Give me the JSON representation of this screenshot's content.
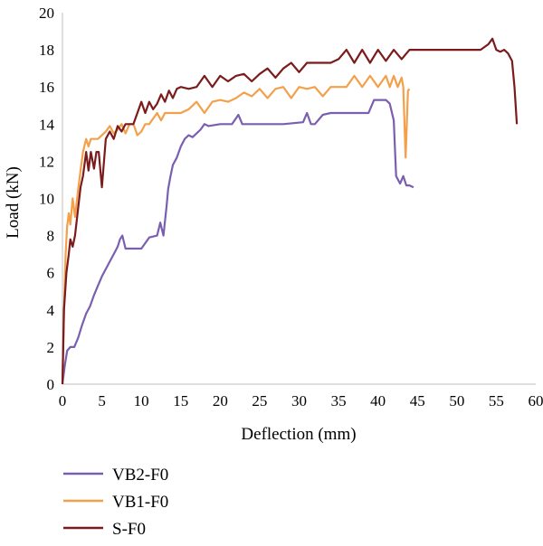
{
  "chart_data": {
    "type": "line",
    "xlabel": "Deflection (mm)",
    "ylabel": "Load (kN)",
    "xlim": [
      0,
      60
    ],
    "ylim": [
      0,
      20
    ],
    "xticks": [
      0,
      5,
      10,
      15,
      20,
      25,
      30,
      35,
      40,
      45,
      50,
      55,
      60
    ],
    "yticks": [
      0,
      2,
      4,
      6,
      8,
      10,
      12,
      14,
      16,
      18,
      20
    ],
    "grid": false,
    "legend_position": "bottom-left",
    "series": [
      {
        "name": "VB2-F0",
        "color": "#7a5fb0",
        "x": [
          0,
          0.3,
          0.6,
          1.0,
          1.5,
          2.0,
          2.5,
          3.0,
          3.5,
          4.0,
          4.5,
          5.0,
          5.5,
          6.0,
          6.5,
          7.0,
          7.3,
          7.6,
          8.0,
          9.0,
          10.0,
          11.0,
          12.0,
          12.4,
          12.8,
          13.2,
          13.4,
          13.7,
          14.0,
          14.5,
          15.0,
          15.5,
          16.0,
          16.5,
          17.0,
          17.5,
          18.0,
          18.5,
          20.0,
          21.5,
          22.3,
          22.8,
          25.0,
          28.0,
          30.5,
          31.0,
          31.5,
          32.0,
          33.0,
          34.0,
          36.0,
          38.0,
          38.8,
          39.5,
          40.5,
          41.0,
          41.5,
          42.0,
          42.3,
          42.8,
          43.2,
          43.6,
          44.0,
          44.5
        ],
        "y": [
          0,
          1.0,
          1.8,
          2.0,
          2.0,
          2.5,
          3.2,
          3.8,
          4.2,
          4.8,
          5.3,
          5.8,
          6.2,
          6.6,
          7.0,
          7.4,
          7.8,
          8.0,
          7.3,
          7.3,
          7.3,
          7.9,
          8.0,
          8.7,
          8.0,
          9.6,
          10.5,
          11.2,
          11.8,
          12.2,
          12.8,
          13.2,
          13.4,
          13.3,
          13.5,
          13.7,
          14.0,
          13.9,
          14.0,
          14.0,
          14.5,
          14.0,
          14.0,
          14.0,
          14.1,
          14.6,
          14.0,
          14.0,
          14.5,
          14.6,
          14.6,
          14.6,
          14.6,
          15.3,
          15.3,
          15.3,
          15.1,
          14.2,
          11.2,
          10.8,
          11.2,
          10.7,
          10.7,
          10.6
        ]
      },
      {
        "name": "VB1-F0",
        "color": "#f4a04a",
        "x": [
          0,
          0.2,
          0.4,
          0.6,
          0.8,
          1.0,
          1.3,
          1.6,
          2.0,
          2.3,
          2.6,
          3.0,
          3.3,
          3.6,
          4.0,
          4.5,
          5.0,
          5.5,
          6.0,
          6.5,
          7.0,
          7.5,
          8.0,
          8.5,
          9.0,
          9.5,
          10.0,
          10.5,
          11.0,
          12.0,
          12.5,
          13.0,
          14.0,
          15.0,
          16.0,
          17.0,
          18.0,
          19.0,
          20.0,
          21.0,
          22.0,
          23.0,
          24.0,
          25.0,
          26.0,
          27.0,
          28.0,
          29.0,
          30.0,
          31.0,
          32.0,
          33.0,
          34.0,
          35.0,
          36.0,
          37.0,
          38.0,
          39.0,
          40.0,
          41.0,
          41.5,
          42.0,
          42.5,
          43.0,
          43.2,
          43.5,
          43.8,
          44.0
        ],
        "y": [
          0,
          4.0,
          7.0,
          8.5,
          9.2,
          8.6,
          10.0,
          9.0,
          10.5,
          11.5,
          12.5,
          13.2,
          12.8,
          13.2,
          13.2,
          13.2,
          13.4,
          13.6,
          13.9,
          13.5,
          13.7,
          14.0,
          13.5,
          14.0,
          14.0,
          13.4,
          13.6,
          14.0,
          14.0,
          14.6,
          14.2,
          14.6,
          14.6,
          14.6,
          14.8,
          15.2,
          14.6,
          15.2,
          15.3,
          15.2,
          15.4,
          15.7,
          15.5,
          15.9,
          15.4,
          15.9,
          16.0,
          15.4,
          16.0,
          15.9,
          16.0,
          15.5,
          16.0,
          16.0,
          16.0,
          16.6,
          16.0,
          16.6,
          16.0,
          16.6,
          16.0,
          16.6,
          16.0,
          16.5,
          16.0,
          12.2,
          15.8,
          15.9
        ]
      },
      {
        "name": "S-F0",
        "color": "#7b1b1b",
        "x": [
          0,
          0.2,
          0.5,
          0.8,
          1.0,
          1.3,
          1.6,
          2.0,
          2.3,
          2.6,
          3.0,
          3.3,
          3.6,
          4.0,
          4.3,
          4.6,
          5.0,
          5.5,
          6.0,
          6.5,
          7.0,
          7.5,
          8.0,
          9.0,
          9.5,
          10.0,
          10.5,
          11.0,
          11.5,
          12.0,
          12.5,
          13.0,
          13.5,
          14.0,
          14.5,
          15.0,
          16.0,
          17.0,
          18.0,
          19.0,
          20.0,
          21.0,
          22.0,
          23.0,
          24.0,
          25.0,
          26.0,
          27.0,
          28.0,
          29.0,
          30.0,
          31.0,
          32.0,
          33.0,
          34.0,
          35.0,
          36.0,
          37.0,
          38.0,
          39.0,
          40.0,
          41.0,
          42.0,
          43.0,
          44.0,
          46.0,
          48.0,
          50.0,
          52.0,
          53.0,
          54.0,
          54.5,
          55.0,
          55.5,
          56.0,
          56.5,
          57.0,
          57.3,
          57.6
        ],
        "y": [
          0,
          4.0,
          6.0,
          7.0,
          7.8,
          7.4,
          8.0,
          9.5,
          10.6,
          11.2,
          12.5,
          11.5,
          12.5,
          11.6,
          12.5,
          12.5,
          10.6,
          13.2,
          13.6,
          13.2,
          13.9,
          13.6,
          14.0,
          14.0,
          14.6,
          15.2,
          14.6,
          15.2,
          14.8,
          15.1,
          15.6,
          15.2,
          15.8,
          15.4,
          15.9,
          16.0,
          15.9,
          16.0,
          16.6,
          16.0,
          16.6,
          16.3,
          16.6,
          16.7,
          16.3,
          16.7,
          17.0,
          16.5,
          17.0,
          17.3,
          16.8,
          17.3,
          17.3,
          17.3,
          17.3,
          17.5,
          18.0,
          17.3,
          18.0,
          17.3,
          18.0,
          17.4,
          18.0,
          17.5,
          18.0,
          18.0,
          18.0,
          18.0,
          18.0,
          18.0,
          18.3,
          18.6,
          18.0,
          17.9,
          18.0,
          17.8,
          17.4,
          16.0,
          14.0
        ]
      }
    ]
  }
}
